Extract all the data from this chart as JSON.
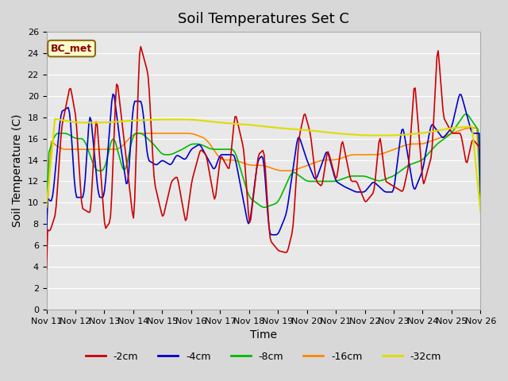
{
  "title": "Soil Temperatures Set C",
  "xlabel": "Time",
  "ylabel": "Soil Temperature (C)",
  "ylim": [
    0,
    26
  ],
  "yticks": [
    0,
    2,
    4,
    6,
    8,
    10,
    12,
    14,
    16,
    18,
    20,
    22,
    24,
    26
  ],
  "bg_color": "#e8e8e8",
  "plot_bg_color": "#e8e8e8",
  "colors": {
    "-2cm": "#cc0000",
    "-4cm": "#0000cc",
    "-8cm": "#00bb00",
    "-16cm": "#ff8800",
    "-32cm": "#dddd00"
  },
  "legend_labels": [
    "-2cm",
    "-4cm",
    "-8cm",
    "-16cm",
    "-32cm"
  ],
  "annotation_text": "BC_met",
  "annotation_color": "#8b0000",
  "annotation_bg": "#ffffcc",
  "x_tick_labels": [
    "Nov 11",
    "Nov 12",
    "Nov 13",
    "Nov 14",
    "Nov 15",
    "Nov 16",
    "Nov 17",
    "Nov 18",
    "Nov 19",
    "Nov 20",
    "Nov 21",
    "Nov 22",
    "Nov 23",
    "Nov 24",
    "Nov 25",
    "Nov 26"
  ],
  "num_points": 360,
  "time_days": 15
}
